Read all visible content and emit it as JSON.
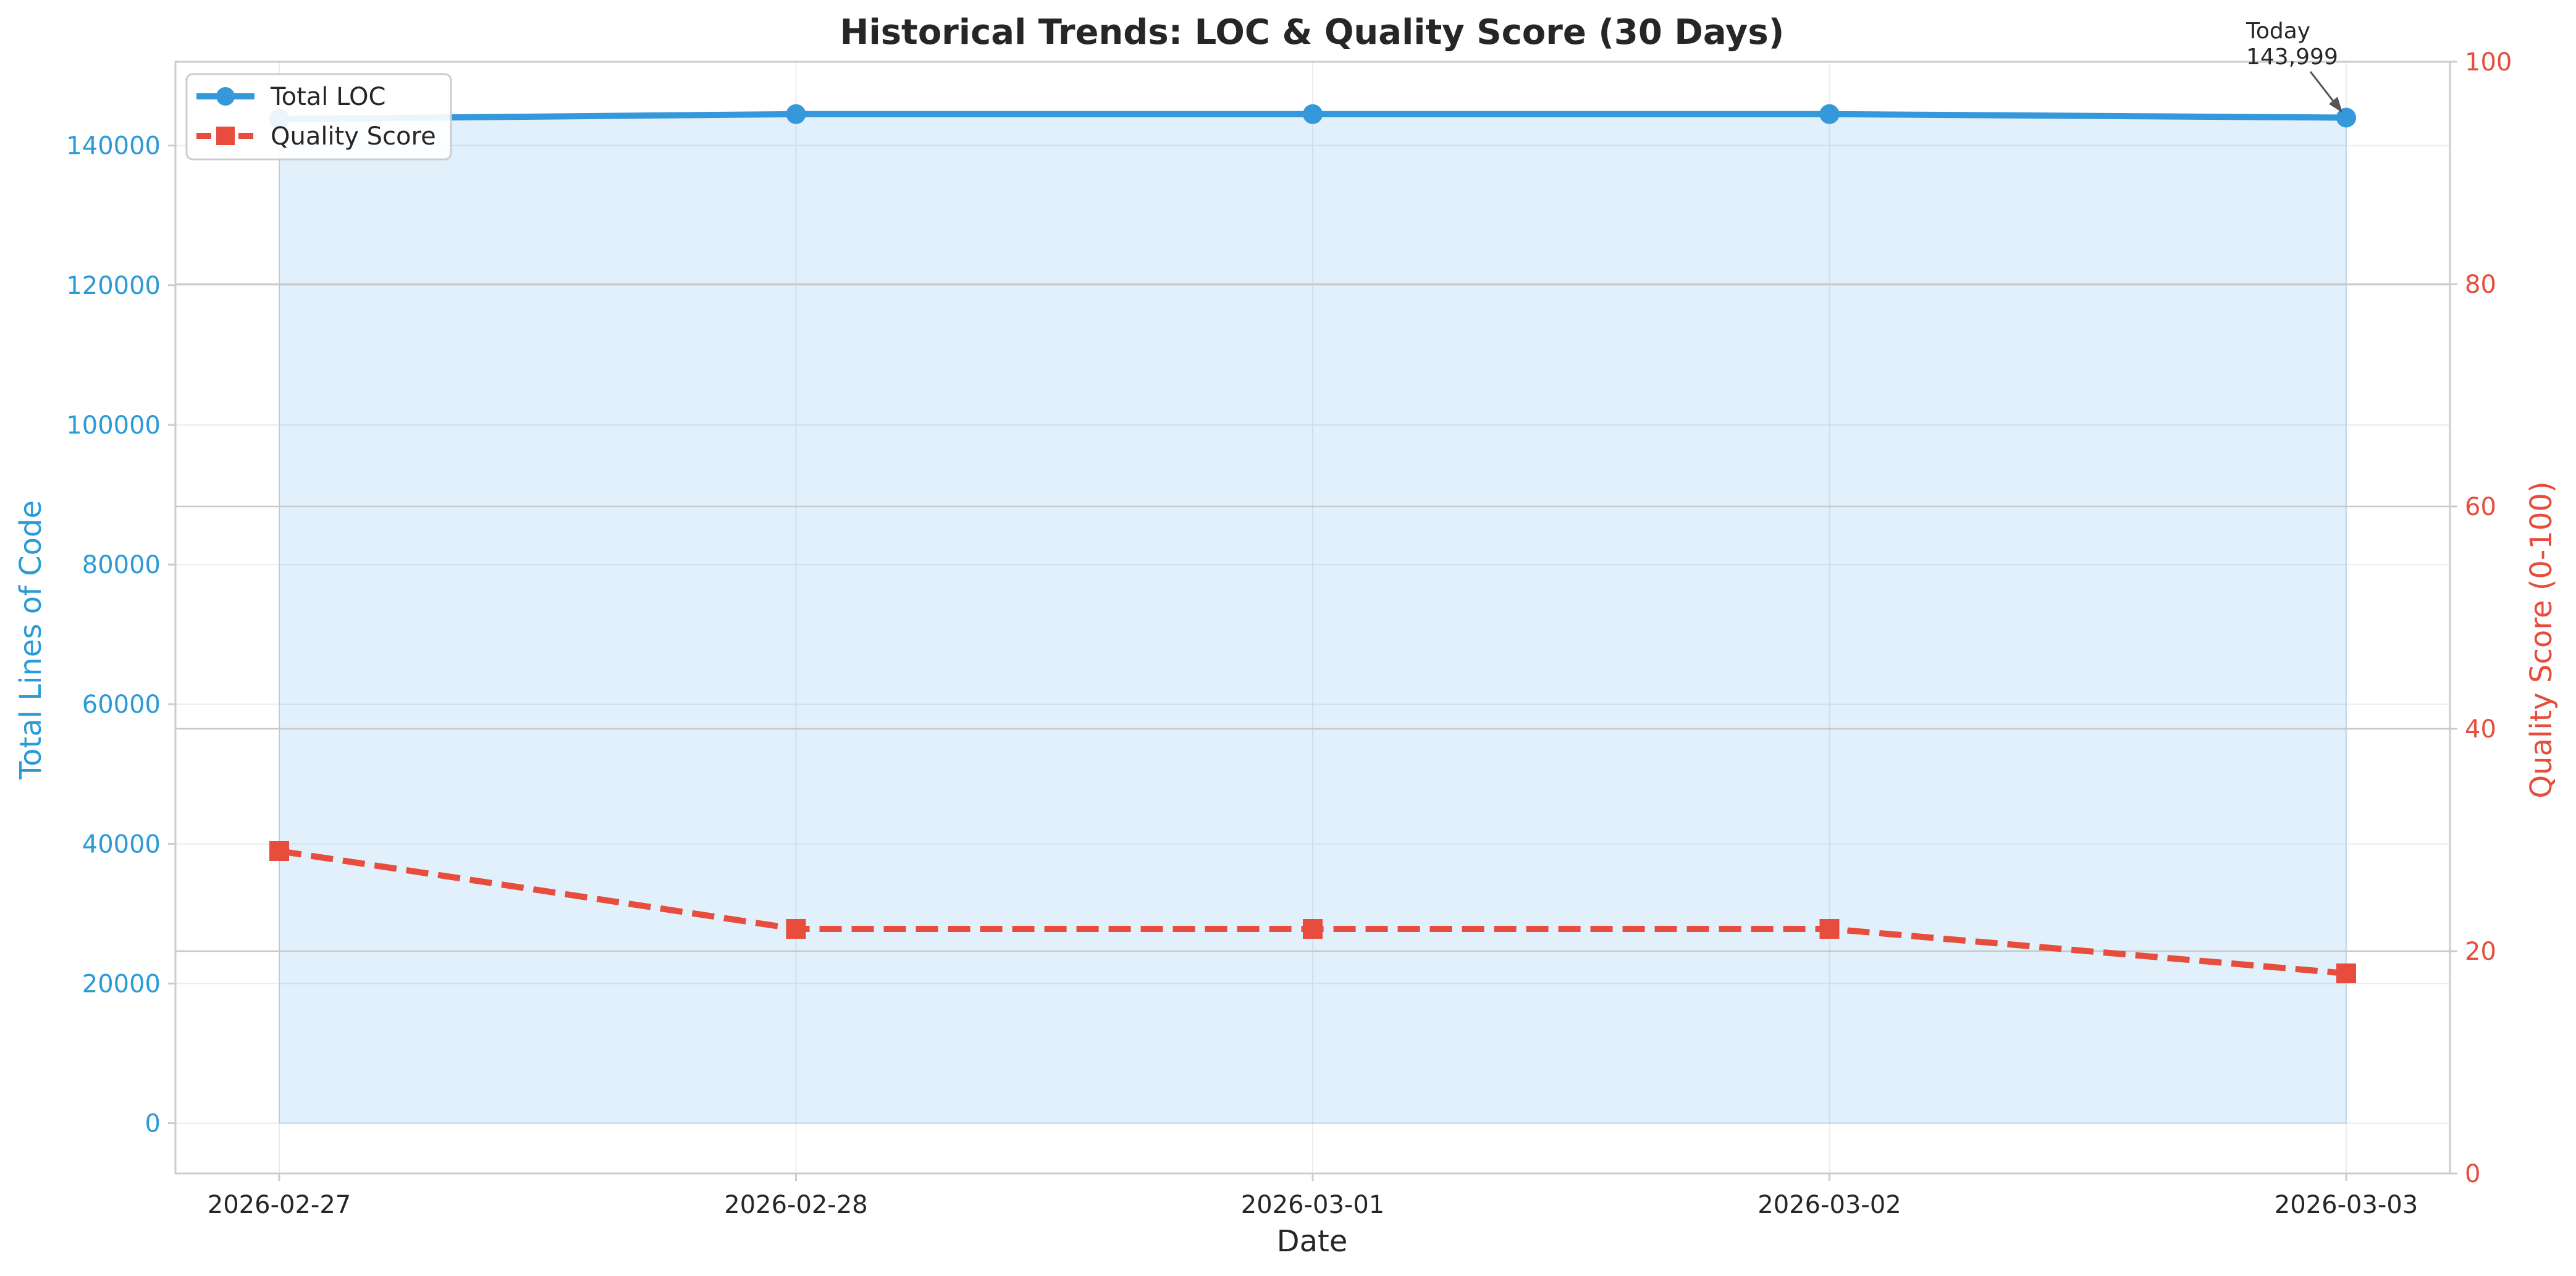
{
  "chart_data": {
    "type": "line",
    "title": "Historical Trends: LOC & Quality Score (30 Days)",
    "xlabel": "Date",
    "ylabel_left": "Total Lines of Code",
    "ylabel_right": "Quality Score (0-100)",
    "categories": [
      "2026-02-27",
      "2026-02-28",
      "2026-03-01",
      "2026-03-02",
      "2026-03-03"
    ],
    "y_left": {
      "lim": [
        -7200,
        152000
      ],
      "ticks": [
        0,
        20000,
        40000,
        60000,
        80000,
        100000,
        120000,
        140000
      ]
    },
    "y_right": {
      "lim": [
        0,
        100
      ],
      "ticks": [
        0,
        20,
        40,
        60,
        80,
        100
      ]
    },
    "series": [
      {
        "name": "Total LOC",
        "axis": "left",
        "values": [
          143800,
          144500,
          144500,
          144500,
          143999
        ],
        "color": "#3498db",
        "marker": "circle",
        "line_style": "solid",
        "fill_area": true
      },
      {
        "name": "Quality Score",
        "axis": "right",
        "values": [
          29,
          22,
          22,
          22,
          18
        ],
        "color": "#e74c3c",
        "marker": "square",
        "line_style": "dashed"
      }
    ],
    "annotation": {
      "lines": [
        "Today",
        "143,999"
      ],
      "target_index": 4,
      "series": "Total LOC"
    },
    "legend": "top-left",
    "grid": true
  }
}
